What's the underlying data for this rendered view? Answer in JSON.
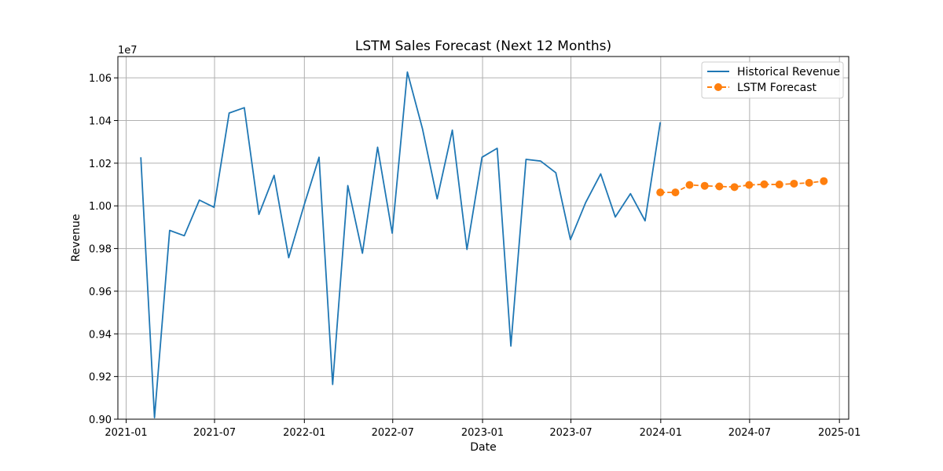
{
  "chart_data": {
    "type": "line",
    "title": "LSTM Sales Forecast (Next 12 Months)",
    "xlabel": "Date",
    "ylabel": "Revenue",
    "y_offset_text": "1e7",
    "x_axis": "date",
    "xlim": [
      "2020-12-15",
      "2025-01-20"
    ],
    "ylim": [
      9000000.0,
      10700000.0
    ],
    "grid": true,
    "legend_position": "top-right",
    "x_ticks": [
      "2021-01",
      "2021-07",
      "2022-01",
      "2022-07",
      "2023-01",
      "2023-07",
      "2024-01",
      "2024-07",
      "2025-01"
    ],
    "y_ticks": [
      "0.90",
      "0.92",
      "0.94",
      "0.96",
      "0.98",
      "1.00",
      "1.02",
      "1.04",
      "1.06"
    ],
    "series": [
      {
        "name": "Historical Revenue",
        "color": "#1f77b4",
        "style": "solid",
        "x": [
          "2021-01-31",
          "2021-02-28",
          "2021-03-31",
          "2021-04-30",
          "2021-05-31",
          "2021-06-30",
          "2021-07-31",
          "2021-08-31",
          "2021-09-30",
          "2021-10-31",
          "2021-11-30",
          "2021-12-31",
          "2022-01-31",
          "2022-02-28",
          "2022-03-31",
          "2022-04-30",
          "2022-05-31",
          "2022-06-30",
          "2022-07-31",
          "2022-08-31",
          "2022-09-30",
          "2022-10-31",
          "2022-11-30",
          "2022-12-31",
          "2023-01-31",
          "2023-02-28",
          "2023-03-31",
          "2023-04-30",
          "2023-05-31",
          "2023-06-30",
          "2023-07-31",
          "2023-08-31",
          "2023-09-30",
          "2023-10-31",
          "2023-11-30",
          "2023-12-31"
        ],
        "values": [
          10228000,
          9007000,
          9885000,
          9860000,
          10027000,
          9993000,
          10435000,
          10460000,
          9960000,
          10143000,
          9757000,
          10000000,
          10228000,
          9163000,
          10095000,
          9778000,
          10275000,
          9872000,
          10627000,
          10360000,
          10033000,
          10355000,
          9796000,
          10228000,
          10270000,
          9343000,
          10218000,
          10210000,
          10155000,
          9842000,
          10015000,
          10150000,
          9948000,
          10057000,
          9930000,
          10392000
        ]
      },
      {
        "name": "LSTM Forecast",
        "color": "#ff7f0e",
        "style": "dashed",
        "marker": "circle",
        "x": [
          "2023-12-31",
          "2024-01-31",
          "2024-02-29",
          "2024-03-31",
          "2024-04-30",
          "2024-05-31",
          "2024-06-30",
          "2024-07-31",
          "2024-08-31",
          "2024-09-30",
          "2024-10-31",
          "2024-11-30"
        ],
        "values": [
          10063000,
          10063000,
          10098000,
          10094000,
          10091000,
          10088000,
          10098000,
          10101000,
          10100000,
          10104000,
          10108000,
          10116000
        ]
      }
    ]
  }
}
